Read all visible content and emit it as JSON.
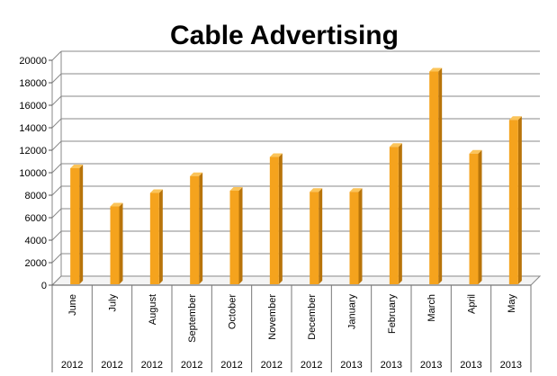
{
  "chart_data": {
    "type": "bar",
    "title": "Cable Advertising",
    "categories": [
      {
        "month": "June",
        "year": "2012"
      },
      {
        "month": "July",
        "year": "2012"
      },
      {
        "month": "August",
        "year": "2012"
      },
      {
        "month": "September",
        "year": "2012"
      },
      {
        "month": "October",
        "year": "2012"
      },
      {
        "month": "November",
        "year": "2012"
      },
      {
        "month": "December",
        "year": "2012"
      },
      {
        "month": "January",
        "year": "2013"
      },
      {
        "month": "February",
        "year": "2013"
      },
      {
        "month": "March",
        "year": "2013"
      },
      {
        "month": "April",
        "year": "2013"
      },
      {
        "month": "May",
        "year": "2013"
      }
    ],
    "values": [
      10400,
      7000,
      8200,
      9700,
      8400,
      11400,
      8300,
      8300,
      12300,
      19000,
      11700,
      14700
    ],
    "yticks": [
      "0",
      "2000",
      "4000",
      "6000",
      "8000",
      "10000",
      "12000",
      "14000",
      "16000",
      "18000",
      "20000"
    ],
    "ylim": [
      0,
      20000
    ],
    "grid": true,
    "colors": {
      "bar_front": "#f5a31d",
      "bar_side": "#b8740a",
      "bar_top": "#fbc45a",
      "grid": "#888888",
      "wall": "#ffffff"
    }
  }
}
